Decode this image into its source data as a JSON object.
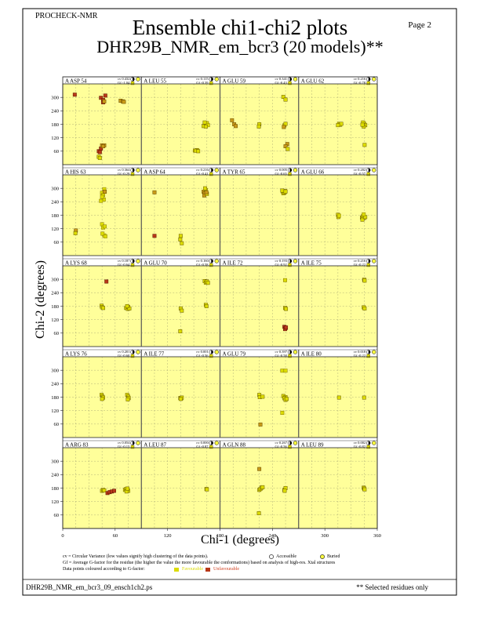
{
  "header": {
    "program": "PROCHECK-NMR",
    "page_label": "Page  2",
    "title": "Ensemble chi1-chi2 plots",
    "subtitle": "DHR29B_NMR_em_bcr3 (20 models)**"
  },
  "footer": {
    "cv_note": "cv = Circular Variance (low values signify high clustering of the data points).",
    "gf_note": "Gf = Average G-factor for the residue (the higher the value the more favourable the conformations) based on analysis of high-res. Xtal structures",
    "colour_note": "Data points coloured according to G-factor:",
    "favourable": "Favourable",
    "unfavourable": "Unfavourable",
    "accessible": "Accessible",
    "buried": "Buried",
    "filename": "DHR29B_NMR_em_bcr3_09_ensch1ch2.ps",
    "selected_note": "** Selected residues only"
  },
  "chart_data": {
    "type": "scatter",
    "xlabel": "Chi-1 (degrees)",
    "ylabel": "Chi-2 (degrees)",
    "xlim": [
      0,
      360
    ],
    "ylim": [
      0,
      360
    ],
    "xticks": [
      0,
      60,
      120,
      180,
      240,
      300,
      360
    ],
    "yticks": [
      60,
      120,
      180,
      240,
      300
    ],
    "colors": {
      "plot_bg": "#ffff9a",
      "favourable": "#dcdc00",
      "mid": "#c89a18",
      "unfavourable": "#b83818",
      "frame": "#555555"
    },
    "panels": [
      {
        "label": "A ASP 54",
        "cv": "cv 0.432",
        "gf": "Gf -1.04",
        "points": [
          [
            55,
            312,
            3
          ],
          [
            175,
            298,
            3
          ],
          [
            185,
            288,
            3
          ],
          [
            185,
            278,
            3
          ],
          [
            195,
            308,
            3
          ],
          [
            190,
            282,
            2
          ],
          [
            265,
            285,
            2
          ],
          [
            275,
            282,
            2
          ],
          [
            280,
            280,
            2
          ],
          [
            165,
            60,
            3
          ],
          [
            170,
            56,
            3
          ],
          [
            175,
            72,
            3
          ],
          [
            180,
            86,
            2
          ],
          [
            190,
            86,
            2
          ],
          [
            185,
            82,
            2
          ],
          [
            165,
            35,
            1
          ],
          [
            170,
            30,
            1
          ]
        ]
      },
      {
        "label": "A LEU 55",
        "cv": "cv 0.115",
        "gf": "Gf -0.39",
        "points": [
          [
            290,
            178,
            1
          ],
          [
            295,
            182,
            1
          ],
          [
            300,
            178,
            1
          ],
          [
            285,
            172,
            1
          ],
          [
            300,
            185,
            1
          ],
          [
            290,
            188,
            1
          ],
          [
            305,
            176,
            0
          ],
          [
            295,
            170,
            1
          ],
          [
            245,
            63,
            1
          ],
          [
            255,
            65,
            1
          ],
          [
            250,
            62,
            1
          ],
          [
            260,
            60,
            1
          ]
        ]
      },
      {
        "label": "A GLU 59",
        "cv": "cv 0.341",
        "gf": "Gf -0.43",
        "points": [
          [
            55,
            198,
            2
          ],
          [
            65,
            180,
            2
          ],
          [
            72,
            172,
            2
          ],
          [
            180,
            180,
            1
          ],
          [
            178,
            170,
            1
          ],
          [
            290,
            302,
            1
          ],
          [
            300,
            290,
            1
          ],
          [
            295,
            175,
            1
          ],
          [
            300,
            182,
            1
          ],
          [
            292,
            168,
            2
          ],
          [
            308,
            92,
            2
          ],
          [
            300,
            82,
            2
          ],
          [
            310,
            70,
            1
          ]
        ]
      },
      {
        "label": "A GLU 62",
        "cv": "cv 0.216",
        "gf": "Gf -0.78",
        "points": [
          [
            185,
            182,
            1
          ],
          [
            190,
            178,
            1
          ],
          [
            195,
            182,
            1
          ],
          [
            180,
            176,
            1
          ],
          [
            300,
            182,
            1
          ],
          [
            295,
            188,
            1
          ],
          [
            305,
            176,
            1
          ],
          [
            298,
            170,
            1
          ],
          [
            292,
            178,
            1
          ],
          [
            302,
            88,
            1
          ]
        ]
      },
      {
        "label": "A HIS 63",
        "cv": "cv 0.364",
        "gf": "Gf -0.29",
        "points": [
          [
            180,
            280,
            0
          ],
          [
            185,
            270,
            0
          ],
          [
            192,
            285,
            0
          ],
          [
            188,
            250,
            0
          ],
          [
            180,
            262,
            0
          ],
          [
            175,
            244,
            0
          ],
          [
            190,
            296,
            0
          ],
          [
            180,
            140,
            0
          ],
          [
            185,
            125,
            0
          ],
          [
            192,
            130,
            0
          ],
          [
            190,
            90,
            0
          ],
          [
            182,
            98,
            0
          ],
          [
            195,
            86,
            0
          ],
          [
            60,
            112,
            2
          ],
          [
            58,
            100,
            1
          ],
          [
            192,
            285,
            2
          ]
        ]
      },
      {
        "label": "A ASP 64",
        "cv": "cv 0.216",
        "gf": "Gf -0.41",
        "points": [
          [
            285,
            285,
            2
          ],
          [
            290,
            278,
            2
          ],
          [
            295,
            292,
            1
          ],
          [
            288,
            268,
            2
          ],
          [
            300,
            275,
            1
          ],
          [
            292,
            300,
            1
          ],
          [
            298,
            282,
            2
          ],
          [
            60,
            282,
            2
          ],
          [
            60,
            88,
            3
          ],
          [
            180,
            88,
            1
          ],
          [
            178,
            72,
            1
          ],
          [
            185,
            55,
            1
          ]
        ]
      },
      {
        "label": "A TYR 65",
        "cv": "cv 0.005",
        "gf": "Gf -0.65",
        "points": [
          [
            288,
            285,
            1
          ],
          [
            293,
            280,
            1
          ],
          [
            298,
            288,
            1
          ],
          [
            290,
            278,
            1
          ],
          [
            296,
            282,
            1
          ],
          [
            285,
            290,
            1
          ],
          [
            300,
            286,
            1
          ]
        ]
      },
      {
        "label": "A GLU 66",
        "cv": "cv 0.202",
        "gf": "Gf -0.57",
        "points": [
          [
            180,
            182,
            1
          ],
          [
            182,
            172,
            1
          ],
          [
            185,
            178,
            0
          ],
          [
            290,
            170,
            1
          ],
          [
            295,
            176,
            1
          ],
          [
            300,
            168,
            1
          ],
          [
            292,
            160,
            1
          ],
          [
            305,
            172,
            1
          ],
          [
            298,
            184,
            0
          ]
        ]
      },
      {
        "label": "A LYS 68",
        "cv": "cv 0.187",
        "gf": "Gf -0.64",
        "points": [
          [
            178,
            182,
            1
          ],
          [
            180,
            175,
            1
          ],
          [
            185,
            172,
            1
          ],
          [
            290,
            172,
            1
          ],
          [
            298,
            168,
            1
          ],
          [
            300,
            176,
            1
          ],
          [
            305,
            170,
            1
          ],
          [
            295,
            180,
            1
          ],
          [
            200,
            290,
            3
          ]
        ]
      },
      {
        "label": "A GLU 70",
        "cv": "cv 0.160",
        "gf": "Gf -0.58",
        "points": [
          [
            290,
            292,
            1
          ],
          [
            295,
            285,
            1
          ],
          [
            300,
            290,
            1
          ],
          [
            305,
            284,
            1
          ],
          [
            295,
            186,
            1
          ],
          [
            298,
            180,
            1
          ],
          [
            180,
            170,
            1
          ],
          [
            185,
            160,
            1
          ],
          [
            178,
            68,
            1
          ]
        ]
      },
      {
        "label": "A ILE 72",
        "cv": "cv 0.193",
        "gf": "Gf -0.92",
        "points": [
          [
            298,
            172,
            1
          ],
          [
            302,
            168,
            1
          ],
          [
            298,
            296,
            0
          ],
          [
            295,
            88,
            3
          ],
          [
            300,
            82,
            3
          ],
          [
            298,
            78,
            3
          ],
          [
            302,
            85,
            3
          ]
        ]
      },
      {
        "label": "A ILE 75",
        "cv": "cv 0.216",
        "gf": "Gf -0.22",
        "points": [
          [
            300,
            298,
            1
          ],
          [
            302,
            294,
            1
          ],
          [
            298,
            175,
            1
          ],
          [
            302,
            170,
            1
          ]
        ]
      },
      {
        "label": "A LYS 76",
        "cv": "cv 0.201",
        "gf": "Gf -0.60",
        "points": [
          [
            178,
            190,
            1
          ],
          [
            182,
            182,
            1
          ],
          [
            185,
            178,
            1
          ],
          [
            180,
            172,
            1
          ],
          [
            295,
            190,
            1
          ],
          [
            300,
            182,
            1
          ],
          [
            302,
            176,
            1
          ],
          [
            298,
            170,
            1
          ]
        ]
      },
      {
        "label": "A ILE 77",
        "cv": "cv 0.001",
        "gf": "Gf -0.56",
        "points": [
          [
            178,
            176,
            1
          ],
          [
            182,
            174,
            1
          ],
          [
            185,
            178,
            1
          ],
          [
            180,
            172,
            1
          ]
        ]
      },
      {
        "label": "A GLU 79",
        "cv": "cv 0.397",
        "gf": "Gf -0.58",
        "points": [
          [
            285,
            298,
            0
          ],
          [
            300,
            298,
            0
          ],
          [
            180,
            190,
            1
          ],
          [
            182,
            180,
            1
          ],
          [
            195,
            182,
            1
          ],
          [
            290,
            185,
            1
          ],
          [
            300,
            180,
            1
          ],
          [
            295,
            175,
            1
          ],
          [
            300,
            168,
            1
          ],
          [
            305,
            172,
            1
          ],
          [
            185,
            58,
            2
          ],
          [
            285,
            110,
            0
          ]
        ]
      },
      {
        "label": "A ILE 80",
        "cv": "cv 0.018",
        "gf": "Gf -0.22",
        "points": [
          [
            185,
            178,
            1
          ],
          [
            300,
            178,
            1
          ]
        ]
      },
      {
        "label": "A ARG 83",
        "cv": "cv 0.054",
        "gf": "Gf -0.15",
        "points": [
          [
            180,
            168,
            1
          ],
          [
            185,
            172,
            1
          ],
          [
            190,
            170,
            1
          ],
          [
            205,
            158,
            3
          ],
          [
            215,
            162,
            3
          ],
          [
            225,
            165,
            3
          ],
          [
            235,
            168,
            3
          ],
          [
            285,
            172,
            1
          ],
          [
            290,
            176,
            1
          ],
          [
            295,
            170,
            1
          ],
          [
            300,
            168,
            1
          ],
          [
            292,
            165,
            1
          ],
          [
            296,
            178,
            1
          ]
        ]
      },
      {
        "label": "A LEU 87",
        "cv": "cv 0.000",
        "gf": "Gf -0.87",
        "points": [
          [
            298,
            176,
            1
          ],
          [
            300,
            174,
            1
          ]
        ]
      },
      {
        "label": "A GLN 88",
        "cv": "cv 0.267",
        "gf": "Gf -0.56",
        "points": [
          [
            180,
            265,
            2
          ],
          [
            180,
            172,
            1
          ],
          [
            185,
            176,
            1
          ],
          [
            190,
            182,
            1
          ],
          [
            195,
            184,
            1
          ],
          [
            178,
            68,
            1
          ],
          [
            295,
            172,
            1
          ],
          [
            300,
            180,
            1
          ],
          [
            296,
            168,
            1
          ]
        ]
      },
      {
        "label": "A LEU 89",
        "cv": "cv 0.002",
        "gf": "Gf -0.82",
        "points": [
          [
            298,
            182,
            1
          ],
          [
            300,
            178,
            1
          ],
          [
            302,
            174,
            1
          ]
        ]
      }
    ]
  }
}
